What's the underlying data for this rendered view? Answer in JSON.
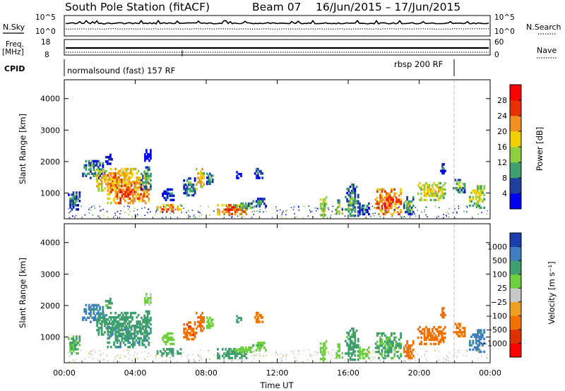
{
  "header": {
    "title": "South Pole Station (fitACF)",
    "beam": "Beam 07",
    "dates": "16/Jun/2015 – 17/Jun/2015"
  },
  "summary": {
    "nsky_label": "N.Sky",
    "nsky_ticks": [
      "10^5",
      "10^0"
    ],
    "nsearch_label": "N.Search",
    "nsearch_ticks": [
      "10^5",
      "10^0"
    ],
    "freq_label_line1": "Freq.",
    "freq_label_line2": "[MHz]",
    "freq_ticks": [
      "18",
      "8"
    ],
    "nave_label": "Nave",
    "nave_ticks": [
      "60",
      "0"
    ],
    "cpid_label": "CPID",
    "cpid_left": "normalsound (fast) 157 RF",
    "cpid_right": "rbsp 200 RF"
  },
  "chart_data": [
    {
      "type": "heatmap",
      "title": "",
      "xlabel": "",
      "ylabel": "Slant Range [km]",
      "colorbar_label": "Power [dB]",
      "colorbar_ticks": [
        "28",
        "24",
        "20",
        "16",
        "12",
        "8",
        "4"
      ],
      "colorbar_colors": [
        "#0000ee",
        "#2040a0",
        "#3f9f6f",
        "#8fcf3f",
        "#f0d000",
        "#f09020",
        "#e83000",
        "#ff0000"
      ],
      "y_ticks": [
        "4000",
        "3000",
        "2000",
        "1000"
      ],
      "ylim": [
        180,
        4600
      ],
      "x_ticks": [
        "00:00",
        "04:00",
        "08:00",
        "12:00",
        "16:00",
        "20:00",
        "00:00"
      ],
      "xlim": [
        0,
        24
      ],
      "grid": false,
      "echo_regions": [
        {
          "t": [
            0.2,
            0.9
          ],
          "r": [
            450,
            1050
          ],
          "v": 12
        },
        {
          "t": [
            1.0,
            2.3
          ],
          "r": [
            1450,
            2050
          ],
          "v": 14
        },
        {
          "t": [
            1.8,
            4.3
          ],
          "r": [
            1050,
            1800
          ],
          "v": 26
        },
        {
          "t": [
            2.4,
            4.8
          ],
          "r": [
            650,
            1350
          ],
          "v": 29
        },
        {
          "t": [
            4.3,
            4.9
          ],
          "r": [
            1100,
            1850
          ],
          "v": 16
        },
        {
          "t": [
            2.3,
            2.8
          ],
          "r": [
            1900,
            2250
          ],
          "v": 8
        },
        {
          "t": [
            4.5,
            4.9
          ],
          "r": [
            2000,
            2400
          ],
          "v": 6
        },
        {
          "t": [
            5.2,
            6.6
          ],
          "r": [
            380,
            650
          ],
          "v": 27
        },
        {
          "t": [
            5.5,
            6.2
          ],
          "r": [
            750,
            1150
          ],
          "v": 10
        },
        {
          "t": [
            6.7,
            7.4
          ],
          "r": [
            900,
            1500
          ],
          "v": 14
        },
        {
          "t": [
            7.4,
            7.9
          ],
          "r": [
            1100,
            1800
          ],
          "v": 24
        },
        {
          "t": [
            8.0,
            8.4
          ],
          "r": [
            1200,
            1650
          ],
          "v": 14
        },
        {
          "t": [
            8.6,
            10.3
          ],
          "r": [
            300,
            650
          ],
          "v": 29
        },
        {
          "t": [
            9.5,
            10.6
          ],
          "r": [
            500,
            700
          ],
          "v": 18
        },
        {
          "t": [
            10.6,
            11.4
          ],
          "r": [
            550,
            850
          ],
          "v": 12
        },
        {
          "t": [
            9.6,
            10.0
          ],
          "r": [
            1450,
            1700
          ],
          "v": 8
        },
        {
          "t": [
            10.7,
            11.2
          ],
          "r": [
            1450,
            1800
          ],
          "v": 12
        },
        {
          "t": [
            14.4,
            14.8
          ],
          "r": [
            200,
            900
          ],
          "v": 20
        },
        {
          "t": [
            15.3,
            15.7
          ],
          "r": [
            250,
            800
          ],
          "v": 18
        },
        {
          "t": [
            15.8,
            16.6
          ],
          "r": [
            250,
            1300
          ],
          "v": 14
        },
        {
          "t": [
            16.6,
            17.2
          ],
          "r": [
            300,
            700
          ],
          "v": 12
        },
        {
          "t": [
            17.5,
            19.0
          ],
          "r": [
            300,
            1150
          ],
          "v": 29
        },
        {
          "t": [
            19.1,
            19.7
          ],
          "r": [
            300,
            900
          ],
          "v": 16
        },
        {
          "t": [
            19.8,
            21.5
          ],
          "r": [
            750,
            1350
          ],
          "v": 22
        },
        {
          "t": [
            21.1,
            21.5
          ],
          "r": [
            1600,
            1950
          ],
          "v": 8
        },
        {
          "t": [
            21.9,
            22.6
          ],
          "r": [
            1000,
            1450
          ],
          "v": 16
        },
        {
          "t": [
            22.8,
            23.7
          ],
          "r": [
            500,
            1250
          ],
          "v": 20
        }
      ]
    },
    {
      "type": "heatmap",
      "title": "",
      "xlabel": "Time UT",
      "ylabel": "Slant Range [km]",
      "colorbar_label": "Velocity [m s⁻¹]",
      "colorbar_ticks": [
        "1000",
        "500",
        "100",
        "25",
        "−25",
        "−100",
        "−500",
        "−1000"
      ],
      "colorbar_colors": [
        "#1a3faa",
        "#3f7fbf",
        "#3f9f6f",
        "#6fd03f",
        "#c8c8c8",
        "#f0a020",
        "#f07000",
        "#e03000",
        "#ff0000"
      ],
      "y_ticks": [
        "4000",
        "3000",
        "2000",
        "1000"
      ],
      "ylim": [
        180,
        4600
      ],
      "x_ticks": [
        "00:00",
        "04:00",
        "08:00",
        "12:00",
        "16:00",
        "20:00",
        "00:00"
      ],
      "xlim": [
        0,
        24
      ],
      "grid": false,
      "echo_regions": [
        {
          "t": [
            0.2,
            0.9
          ],
          "r": [
            450,
            1050
          ],
          "v": 100
        },
        {
          "t": [
            1.0,
            2.3
          ],
          "r": [
            1450,
            2050
          ],
          "v": 700
        },
        {
          "t": [
            1.8,
            4.3
          ],
          "r": [
            1050,
            1800
          ],
          "v": 300
        },
        {
          "t": [
            2.4,
            4.8
          ],
          "r": [
            650,
            1350
          ],
          "v": 400
        },
        {
          "t": [
            4.3,
            4.9
          ],
          "r": [
            1100,
            1850
          ],
          "v": 200
        },
        {
          "t": [
            2.3,
            2.8
          ],
          "r": [
            1900,
            2250
          ],
          "v": 150
        },
        {
          "t": [
            4.5,
            4.9
          ],
          "r": [
            2000,
            2400
          ],
          "v": 30
        },
        {
          "t": [
            5.2,
            6.6
          ],
          "r": [
            380,
            650
          ],
          "v": 300
        },
        {
          "t": [
            5.5,
            6.2
          ],
          "r": [
            750,
            1150
          ],
          "v": 60
        },
        {
          "t": [
            6.7,
            7.4
          ],
          "r": [
            900,
            1500
          ],
          "v": -400
        },
        {
          "t": [
            7.4,
            7.9
          ],
          "r": [
            1100,
            1800
          ],
          "v": -300
        },
        {
          "t": [
            8.0,
            8.4
          ],
          "r": [
            1200,
            1650
          ],
          "v": 50
        },
        {
          "t": [
            8.6,
            10.3
          ],
          "r": [
            300,
            650
          ],
          "v": 150
        },
        {
          "t": [
            9.5,
            10.6
          ],
          "r": [
            500,
            700
          ],
          "v": 60
        },
        {
          "t": [
            10.6,
            11.4
          ],
          "r": [
            550,
            850
          ],
          "v": 80
        },
        {
          "t": [
            9.6,
            10.0
          ],
          "r": [
            1450,
            1700
          ],
          "v": 200
        },
        {
          "t": [
            10.7,
            11.2
          ],
          "r": [
            1450,
            1800
          ],
          "v": -200
        },
        {
          "t": [
            14.4,
            14.8
          ],
          "r": [
            200,
            900
          ],
          "v": 40
        },
        {
          "t": [
            15.3,
            15.7
          ],
          "r": [
            250,
            800
          ],
          "v": 60
        },
        {
          "t": [
            15.8,
            16.6
          ],
          "r": [
            250,
            1300
          ],
          "v": 150
        },
        {
          "t": [
            16.6,
            17.2
          ],
          "r": [
            300,
            700
          ],
          "v": 60
        },
        {
          "t": [
            17.5,
            19.0
          ],
          "r": [
            300,
            1150
          ],
          "v": 120
        },
        {
          "t": [
            19.1,
            19.7
          ],
          "r": [
            300,
            900
          ],
          "v": -300
        },
        {
          "t": [
            19.8,
            21.5
          ],
          "r": [
            750,
            1350
          ],
          "v": -250
        },
        {
          "t": [
            21.1,
            21.5
          ],
          "r": [
            1600,
            1950
          ],
          "v": -200
        },
        {
          "t": [
            21.9,
            22.6
          ],
          "r": [
            1000,
            1450
          ],
          "v": -150
        },
        {
          "t": [
            22.8,
            23.7
          ],
          "r": [
            500,
            1250
          ],
          "v": 700
        }
      ]
    }
  ]
}
